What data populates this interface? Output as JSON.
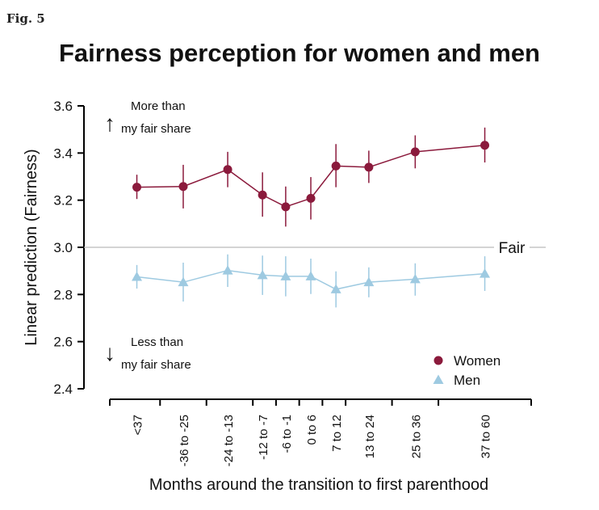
{
  "figure_label": "Fig. 5",
  "chart_data": {
    "type": "line",
    "title": "Fairness perception for women and men",
    "xlabel": "Months around the transition to first parenthood",
    "ylabel": "Linear prediction (Fairness)",
    "ylim": [
      2.4,
      3.6
    ],
    "yticks": [
      "2.4",
      "2.6",
      "2.8",
      "3.0",
      "3.2",
      "3.4",
      "3.6"
    ],
    "grid": false,
    "legend_position": "bottom-right",
    "categories": [
      "<37",
      "-36 to -25",
      "-24 to -13",
      "-12 to -7",
      "-6 to -1",
      "0 to 6",
      "7 to 12",
      "13 to 24",
      "25 to 36",
      "37 to 60"
    ],
    "x_centers": [
      -42,
      -30,
      -18.5,
      -9.5,
      -3.5,
      3,
      9.5,
      18,
      30,
      48
    ],
    "x_bin_edges": [
      -49,
      -36,
      -24,
      -12,
      -6,
      0,
      6,
      12,
      24,
      36,
      60
    ],
    "series": [
      {
        "name": "Women",
        "color": "#8b1a3c",
        "marker": "circle",
        "values": [
          3.255,
          3.258,
          3.33,
          3.222,
          3.172,
          3.208,
          3.345,
          3.34,
          3.405,
          3.433
        ],
        "ci_low": [
          3.205,
          3.165,
          3.255,
          3.13,
          3.088,
          3.118,
          3.255,
          3.273,
          3.335,
          3.36
        ],
        "ci_high": [
          3.308,
          3.35,
          3.405,
          3.318,
          3.258,
          3.298,
          3.438,
          3.41,
          3.475,
          3.508
        ]
      },
      {
        "name": "Men",
        "color": "#9ecae1",
        "marker": "triangle",
        "values": [
          2.875,
          2.852,
          2.902,
          2.882,
          2.877,
          2.877,
          2.822,
          2.852,
          2.865,
          2.888
        ],
        "ci_low": [
          2.825,
          2.77,
          2.832,
          2.798,
          2.792,
          2.802,
          2.745,
          2.788,
          2.795,
          2.815
        ],
        "ci_high": [
          2.925,
          2.935,
          2.97,
          2.965,
          2.962,
          2.952,
          2.898,
          2.915,
          2.932,
          2.962
        ]
      }
    ],
    "reference_line": {
      "y": 3.0,
      "label": "Fair"
    },
    "annotations": {
      "upper": {
        "arrow": "↑",
        "line1": "More than",
        "line2": "my fair share"
      },
      "lower": {
        "arrow": "↓",
        "line1": "Less than",
        "line2": "my fair share"
      }
    }
  }
}
